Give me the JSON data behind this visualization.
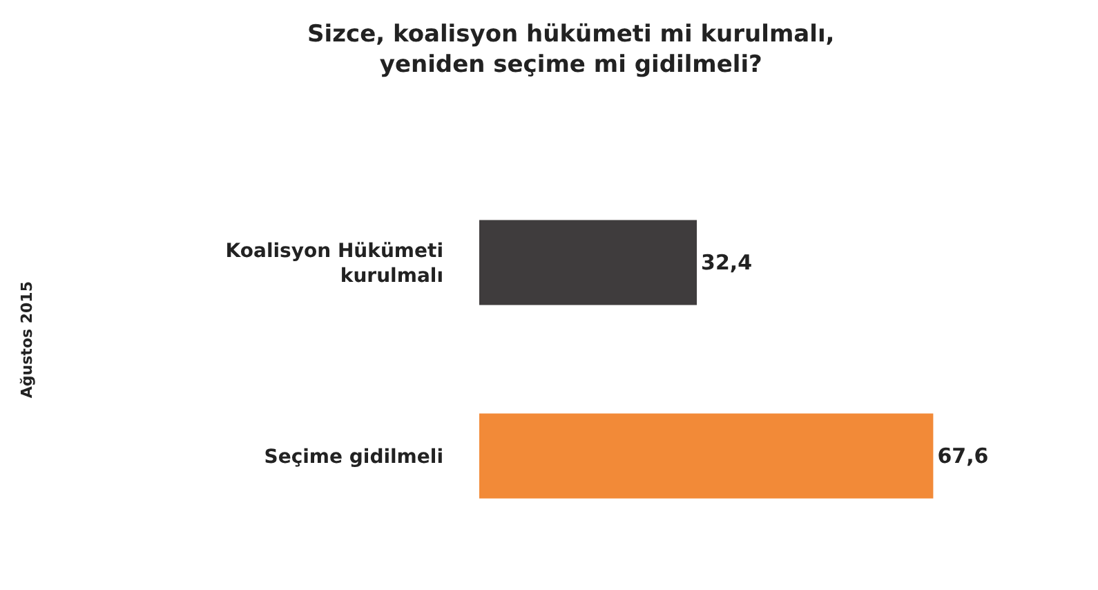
{
  "chart_data": {
    "type": "bar",
    "orientation": "horizontal",
    "title": "Sizce, koalisyon hükümeti mi kurulmalı, yeniden seçime mi gidilmeli?",
    "categories": [
      "Koalisyon Hükümeti kurulmalı",
      "Seçime gidilmeli"
    ],
    "values": [
      32.4,
      67.6
    ],
    "colors": [
      "#3f3c3d",
      "#f28a38"
    ],
    "value_labels": [
      "32,4",
      "67,6"
    ],
    "annotations": [
      "Ağustos 2015"
    ]
  }
}
